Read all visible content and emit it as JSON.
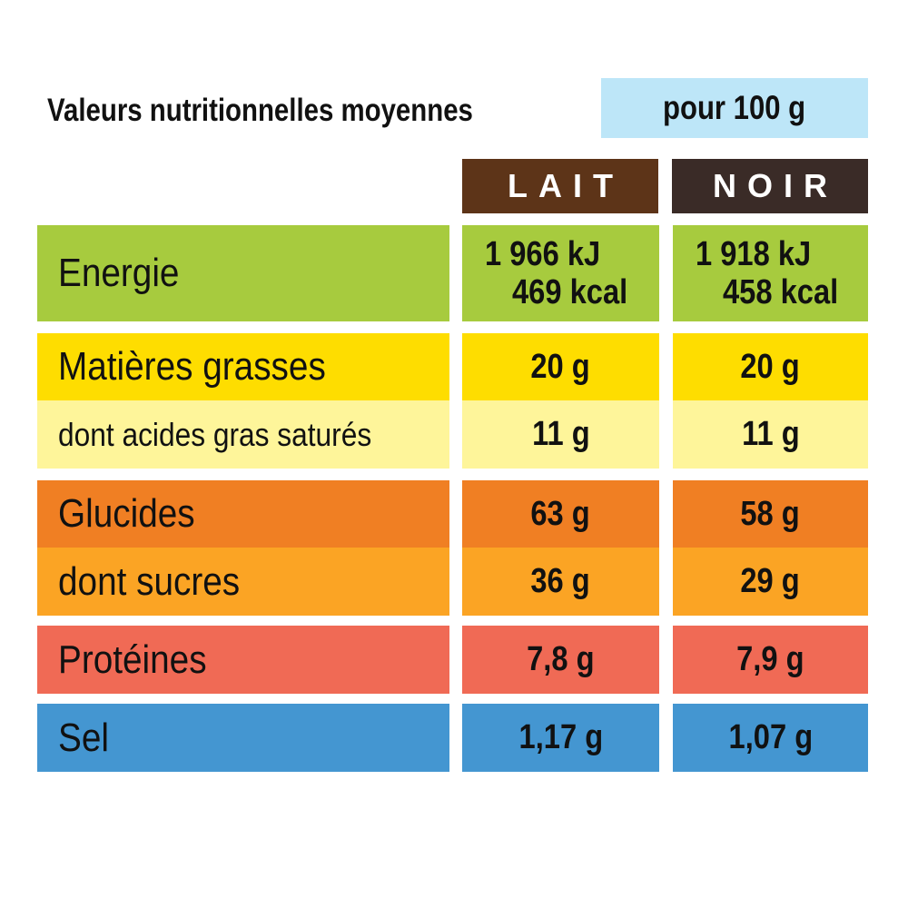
{
  "title": "Valeurs nutritionnelles moyennes",
  "unit": "pour 100 g",
  "columns": [
    "LAIT",
    "NOIR"
  ],
  "colors": {
    "energie": "#a7cb3e",
    "matieres_grasses": "#fedd00",
    "acides_gras_satures": "#fef59a",
    "glucides": "#f07f23",
    "sucres": "#fba424",
    "proteines": "#f06a55",
    "sel": "#4496d1",
    "header_lait": "#5d3418",
    "header_noir": "#3a2b27",
    "unit_box": "#bde6f8"
  },
  "rows": {
    "energie": {
      "label": "Energie",
      "lait": [
        "1 966 kJ",
        "469 kcal"
      ],
      "noir": [
        "1 918 kJ",
        "458 kcal"
      ]
    },
    "matieres_grasses": {
      "label": "Matières grasses",
      "lait": "20 g",
      "noir": "20 g"
    },
    "acides_gras_satures": {
      "label": "dont acides gras saturés",
      "lait": "11 g",
      "noir": "11 g"
    },
    "glucides": {
      "label": "Glucides",
      "lait": "63 g",
      "noir": "58 g"
    },
    "sucres": {
      "label": "dont sucres",
      "lait": "36 g",
      "noir": "29 g"
    },
    "proteines": {
      "label": "Protéines",
      "lait": "7,8 g",
      "noir": "7,9 g"
    },
    "sel": {
      "label": "Sel",
      "lait": "1,17 g",
      "noir": "1,07 g"
    }
  }
}
